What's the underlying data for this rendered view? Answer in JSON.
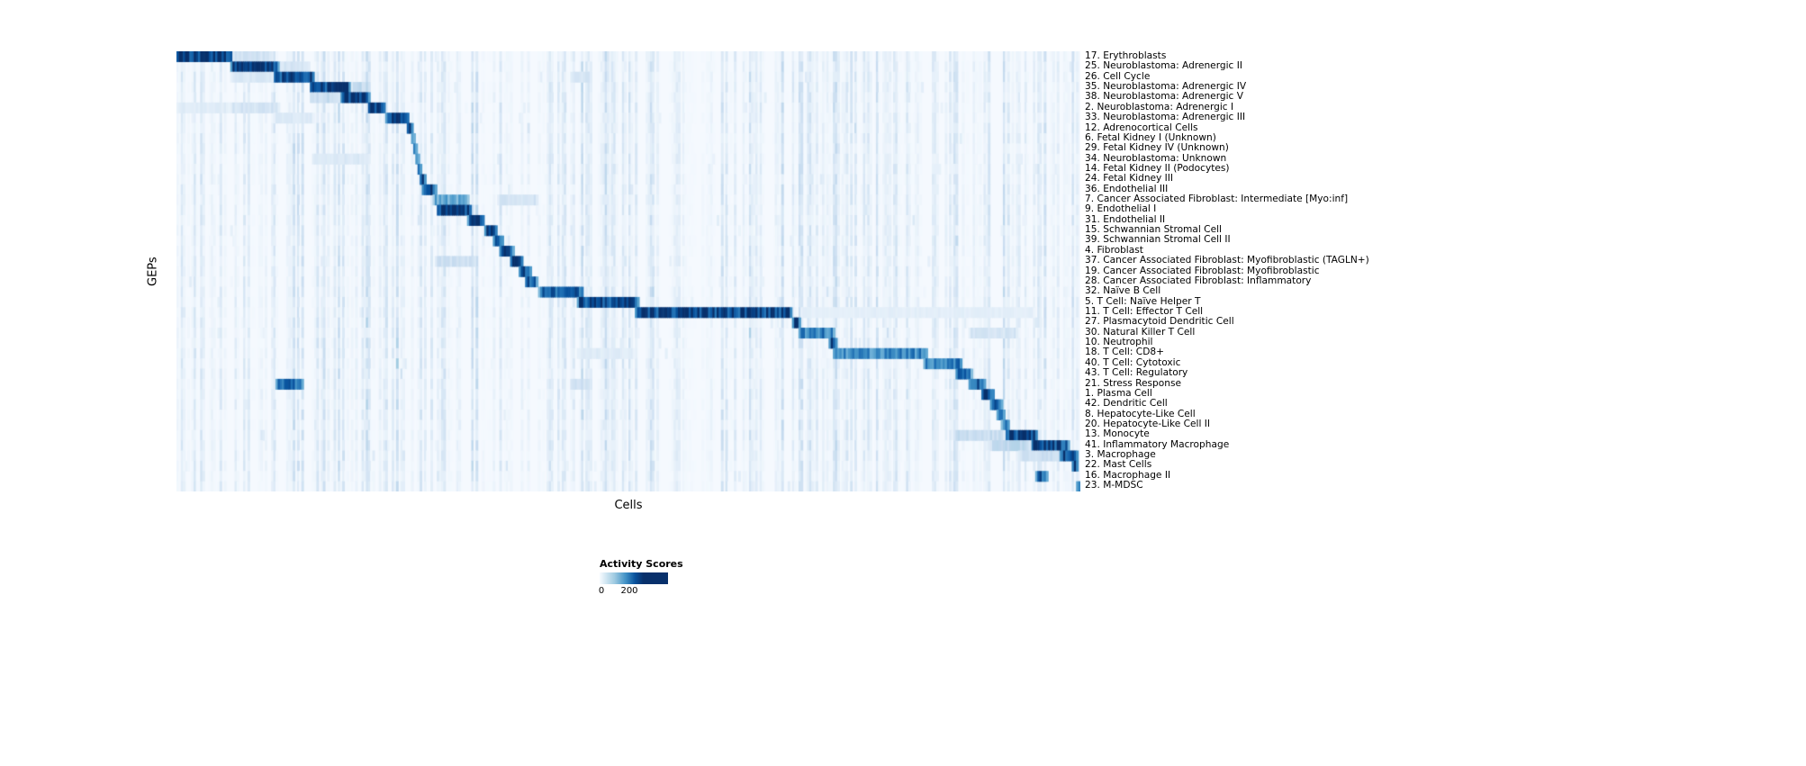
{
  "chart_data": {
    "type": "heatmap",
    "title": "",
    "xlabel": "Cells",
    "ylabel": "GEPs",
    "colorbar": {
      "title": "Activity Scores",
      "tick_labels": [
        "0",
        "200"
      ]
    },
    "colormap_stops": [
      "#f7fbff",
      "#deebf7",
      "#c6dbef",
      "#9ecae1",
      "#6baed6",
      "#4292c6",
      "#2171b5",
      "#08519c",
      "#08306b"
    ],
    "value_max": 240,
    "rows": [
      "17. Erythroblasts",
      "25. Neuroblastoma: Adrenergic II",
      "26. Cell Cycle",
      "35. Neuroblastoma: Adrenergic IV",
      "38. Neuroblastoma: Adrenergic V",
      "2. Neuroblastoma: Adrenergic I",
      "33. Neuroblastoma: Adrenergic III",
      "12. Adrenocortical Cells",
      "6. Fetal Kidney I (Unknown)",
      "29. Fetal Kidney IV (Unknown)",
      "34. Neuroblastoma: Unknown",
      "14. Fetal Kidney II (Podocytes)",
      "24. Fetal Kidney III",
      "36. Endothelial III",
      "7. Cancer Associated Fibroblast: Intermediate [Myo:inf]",
      "9. Endothelial I",
      "31. Endothelial II",
      "15. Schwannian Stromal Cell",
      "39. Schwannian Stromal Cell II",
      "4. Fibroblast",
      "37. Cancer Associated Fibroblast: Myofibroblastic (TAGLN+)",
      "19. Cancer Associated Fibroblast: Myofibroblastic",
      "28. Cancer Associated Fibroblast: Inflammatory",
      "32. Naïve B Cell",
      "5. T Cell: Naïve Helper T",
      "11. T Cell: Effector T Cell",
      "27. Plasmacytoid Dendritic Cell",
      "30. Natural Killer T Cell",
      "10. Neutrophil",
      "18. T Cell: CD8+",
      "40. T Cell: Cytotoxic",
      "43. T Cell: Regulatory",
      "21. Stress Response",
      "1. Plasma Cell",
      "42. Dendritic Cell",
      "8. Hepatocyte-Like Cell",
      "20. Hepatocyte-Like Cell II",
      "13. Monocyte",
      "41. Inflammatory Macrophage",
      "3. Macrophage",
      "22. Mast Cells",
      "16. Macrophage II",
      "23. M-MDSC"
    ],
    "blocks": [
      {
        "row": 0,
        "start": 0.0,
        "end": 0.062,
        "value": 235
      },
      {
        "row": 0,
        "start": 0.062,
        "end": 0.105,
        "value": 45
      },
      {
        "row": 1,
        "start": 0.06,
        "end": 0.115,
        "value": 230
      },
      {
        "row": 1,
        "start": 0.115,
        "end": 0.148,
        "value": 40
      },
      {
        "row": 2,
        "start": 0.107,
        "end": 0.152,
        "value": 225
      },
      {
        "row": 2,
        "start": 0.06,
        "end": 0.107,
        "value": 35
      },
      {
        "row": 2,
        "start": 0.436,
        "end": 0.46,
        "value": 40
      },
      {
        "row": 3,
        "start": 0.148,
        "end": 0.192,
        "value": 228
      },
      {
        "row": 3,
        "start": 0.192,
        "end": 0.215,
        "value": 60
      },
      {
        "row": 4,
        "start": 0.18,
        "end": 0.215,
        "value": 222
      },
      {
        "row": 4,
        "start": 0.148,
        "end": 0.18,
        "value": 55
      },
      {
        "row": 5,
        "start": 0.213,
        "end": 0.232,
        "value": 232
      },
      {
        "row": 5,
        "start": 0.06,
        "end": 0.115,
        "value": 40
      },
      {
        "row": 5,
        "start": 0.0,
        "end": 0.06,
        "value": 28
      },
      {
        "row": 6,
        "start": 0.23,
        "end": 0.256,
        "value": 228
      },
      {
        "row": 6,
        "start": 0.107,
        "end": 0.152,
        "value": 30
      },
      {
        "row": 7,
        "start": 0.254,
        "end": 0.262,
        "value": 222
      },
      {
        "row": 8,
        "start": 0.259,
        "end": 0.264,
        "value": 205
      },
      {
        "row": 9,
        "start": 0.262,
        "end": 0.267,
        "value": 205
      },
      {
        "row": 10,
        "start": 0.264,
        "end": 0.269,
        "value": 195
      },
      {
        "row": 10,
        "start": 0.15,
        "end": 0.213,
        "value": 35
      },
      {
        "row": 11,
        "start": 0.266,
        "end": 0.271,
        "value": 205
      },
      {
        "row": 12,
        "start": 0.268,
        "end": 0.275,
        "value": 212
      },
      {
        "row": 13,
        "start": 0.271,
        "end": 0.287,
        "value": 218
      },
      {
        "row": 14,
        "start": 0.283,
        "end": 0.324,
        "value": 125
      },
      {
        "row": 14,
        "start": 0.355,
        "end": 0.4,
        "value": 42
      },
      {
        "row": 15,
        "start": 0.289,
        "end": 0.327,
        "value": 228
      },
      {
        "row": 16,
        "start": 0.322,
        "end": 0.34,
        "value": 222
      },
      {
        "row": 17,
        "start": 0.34,
        "end": 0.355,
        "value": 228
      },
      {
        "row": 18,
        "start": 0.351,
        "end": 0.361,
        "value": 212
      },
      {
        "row": 19,
        "start": 0.358,
        "end": 0.374,
        "value": 218
      },
      {
        "row": 20,
        "start": 0.368,
        "end": 0.384,
        "value": 214
      },
      {
        "row": 20,
        "start": 0.285,
        "end": 0.33,
        "value": 50
      },
      {
        "row": 21,
        "start": 0.378,
        "end": 0.393,
        "value": 218
      },
      {
        "row": 22,
        "start": 0.386,
        "end": 0.4,
        "value": 205
      },
      {
        "row": 23,
        "start": 0.399,
        "end": 0.451,
        "value": 195
      },
      {
        "row": 24,
        "start": 0.444,
        "end": 0.512,
        "value": 225
      },
      {
        "row": 25,
        "start": 0.508,
        "end": 0.682,
        "value": 228
      },
      {
        "row": 25,
        "start": 0.69,
        "end": 0.95,
        "value": 22
      },
      {
        "row": 26,
        "start": 0.682,
        "end": 0.69,
        "value": 212
      },
      {
        "row": 27,
        "start": 0.689,
        "end": 0.728,
        "value": 165
      },
      {
        "row": 27,
        "start": 0.875,
        "end": 0.93,
        "value": 40
      },
      {
        "row": 28,
        "start": 0.722,
        "end": 0.73,
        "value": 195
      },
      {
        "row": 29,
        "start": 0.727,
        "end": 0.83,
        "value": 155
      },
      {
        "row": 29,
        "start": 0.444,
        "end": 0.508,
        "value": 28
      },
      {
        "row": 30,
        "start": 0.826,
        "end": 0.869,
        "value": 165
      },
      {
        "row": 31,
        "start": 0.863,
        "end": 0.881,
        "value": 185
      },
      {
        "row": 32,
        "start": 0.877,
        "end": 0.895,
        "value": 205
      },
      {
        "row": 32,
        "start": 0.11,
        "end": 0.14,
        "value": 195
      },
      {
        "row": 32,
        "start": 0.436,
        "end": 0.46,
        "value": 48
      },
      {
        "row": 33,
        "start": 0.891,
        "end": 0.905,
        "value": 212
      },
      {
        "row": 34,
        "start": 0.899,
        "end": 0.915,
        "value": 185
      },
      {
        "row": 35,
        "start": 0.908,
        "end": 0.917,
        "value": 172
      },
      {
        "row": 36,
        "start": 0.913,
        "end": 0.921,
        "value": 172
      },
      {
        "row": 37,
        "start": 0.917,
        "end": 0.952,
        "value": 215
      },
      {
        "row": 37,
        "start": 0.86,
        "end": 0.917,
        "value": 55
      },
      {
        "row": 38,
        "start": 0.945,
        "end": 0.987,
        "value": 215
      },
      {
        "row": 38,
        "start": 0.9,
        "end": 0.945,
        "value": 60
      },
      {
        "row": 39,
        "start": 0.977,
        "end": 0.997,
        "value": 205
      },
      {
        "row": 39,
        "start": 0.93,
        "end": 0.977,
        "value": 50
      },
      {
        "row": 40,
        "start": 0.991,
        "end": 0.997,
        "value": 225
      },
      {
        "row": 41,
        "start": 0.95,
        "end": 0.964,
        "value": 185
      },
      {
        "row": 42,
        "start": 0.996,
        "end": 1.0,
        "value": 235
      }
    ]
  }
}
